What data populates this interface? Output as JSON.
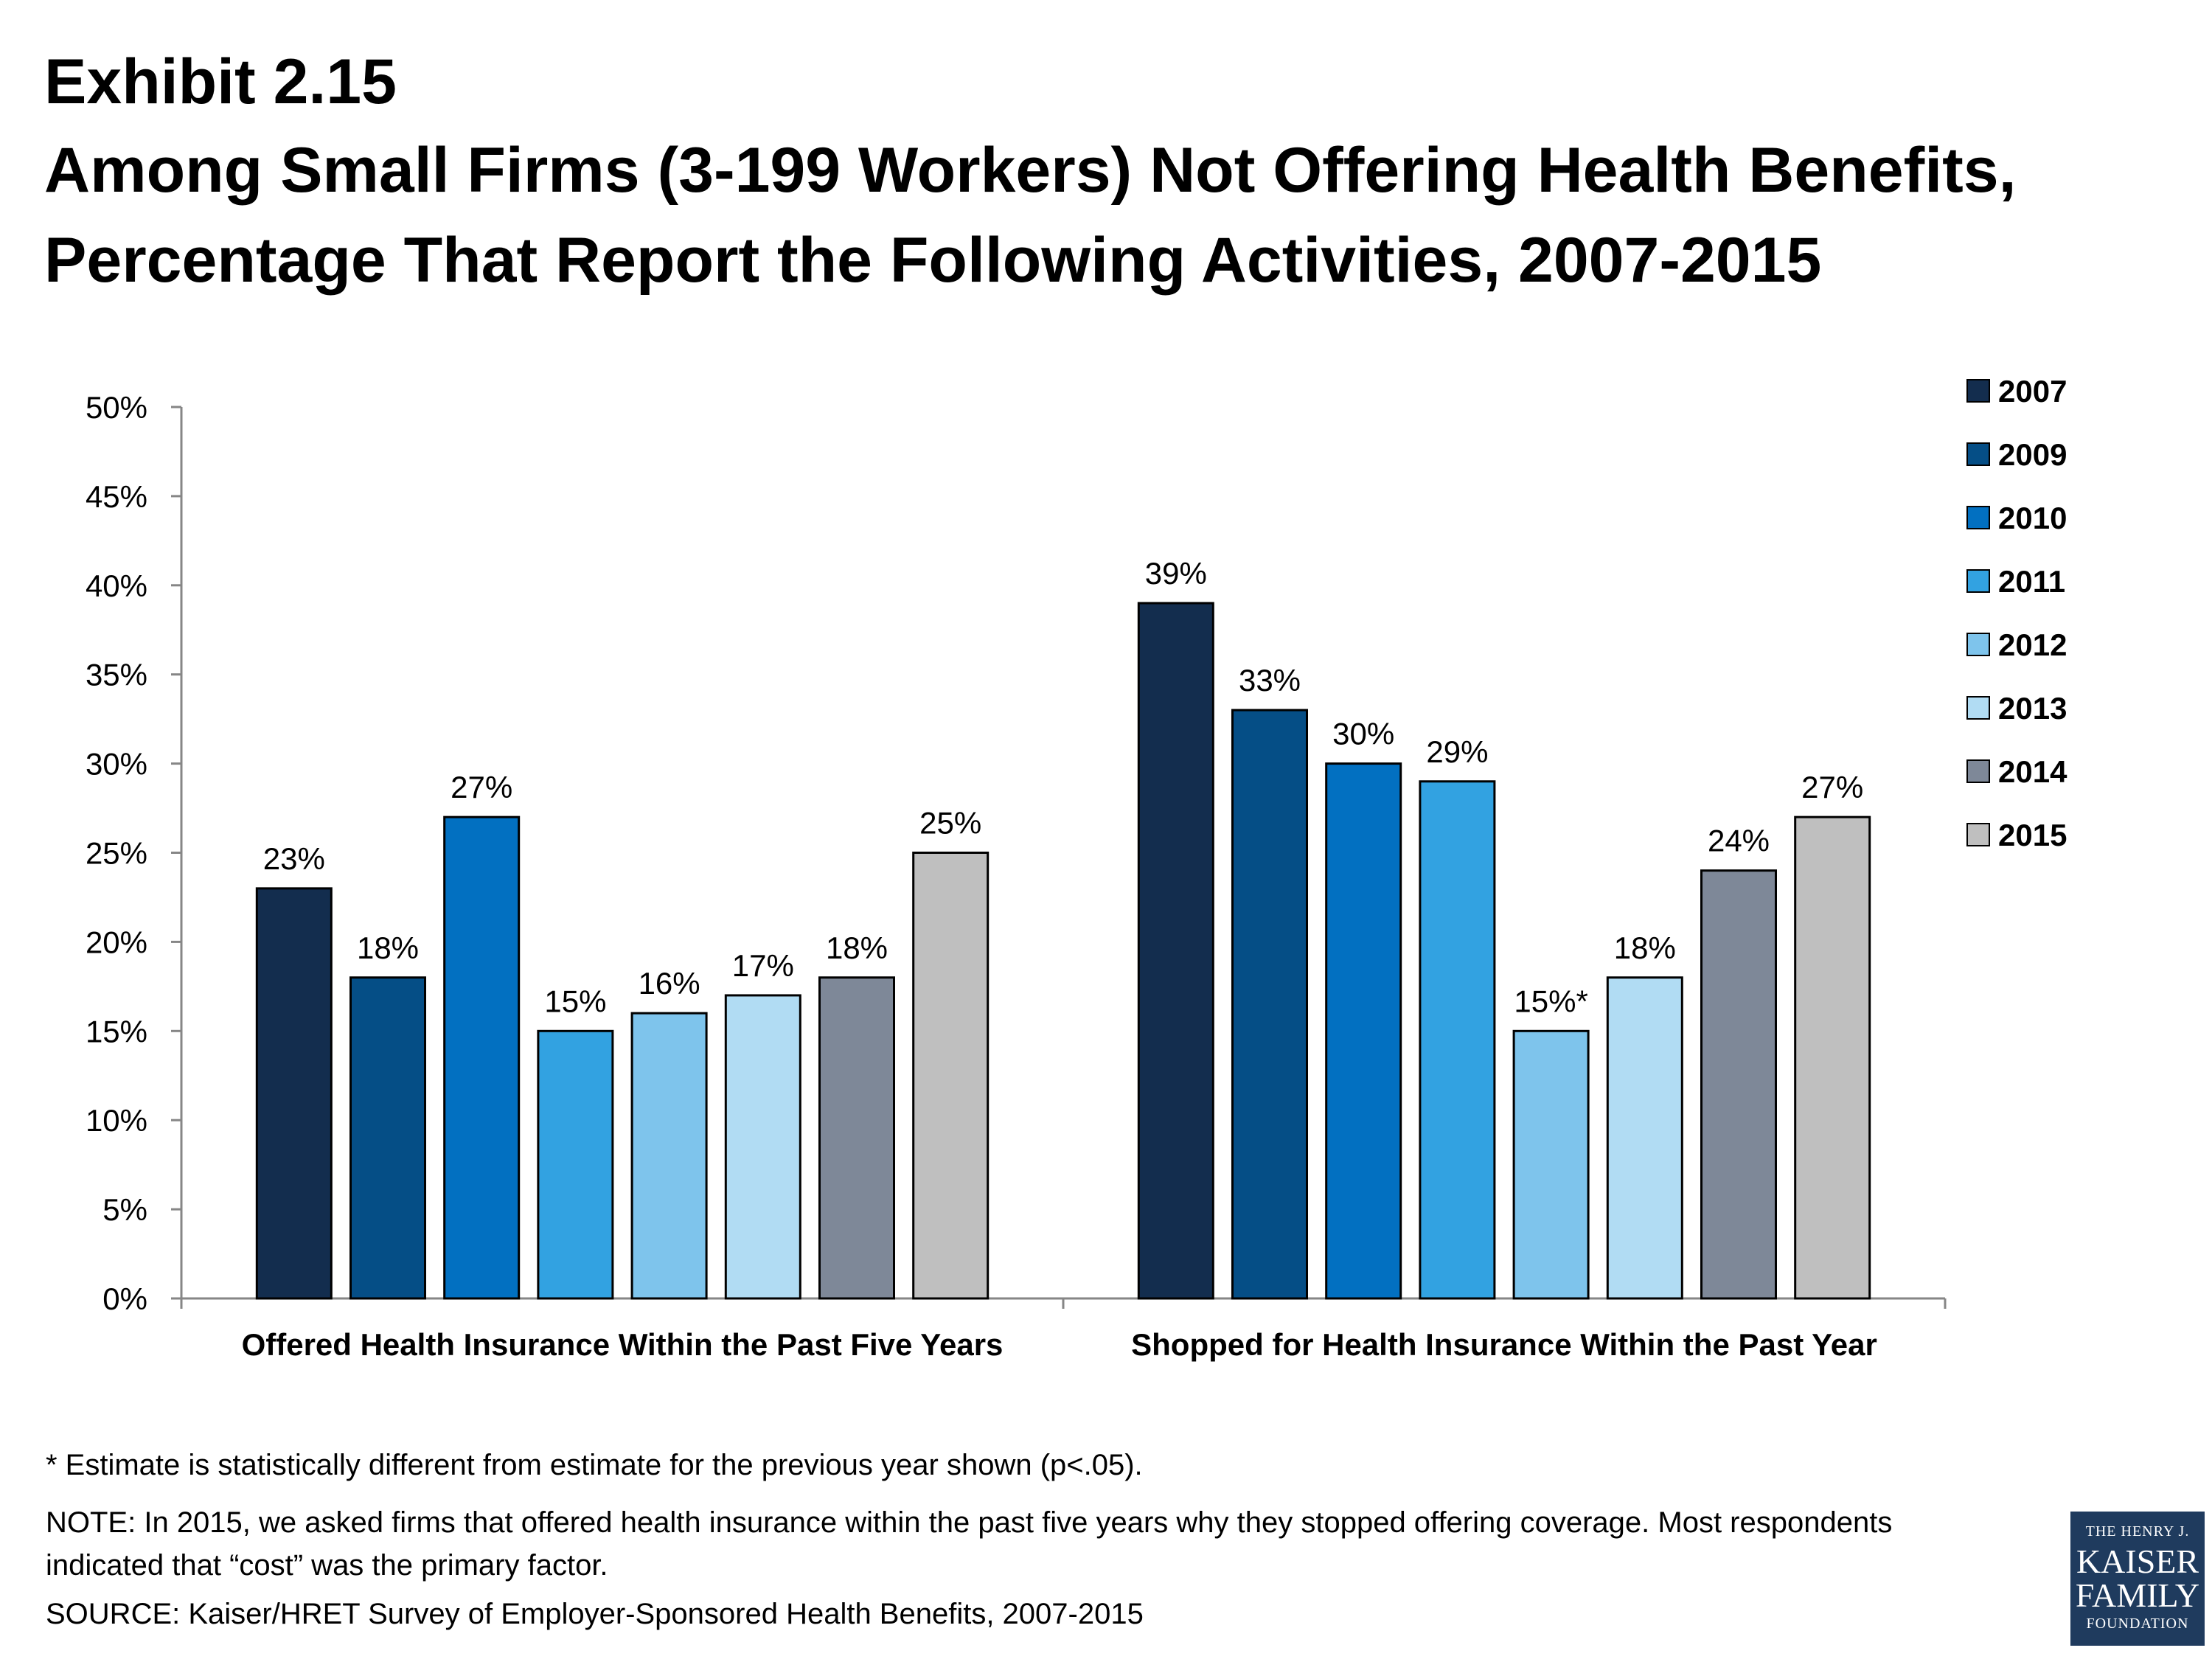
{
  "header": {
    "exhibit": "Exhibit 2.15",
    "title_line1": "Among Small Firms (3-199 Workers) Not Offering Health Benefits,",
    "title_line2": "Percentage That Report the Following Activities, 2007-2015"
  },
  "chart_data": {
    "type": "bar",
    "categories": [
      "Offered Health Insurance Within the Past Five Years",
      "Shopped for Health Insurance Within the Past Year"
    ],
    "series": [
      {
        "name": "2007",
        "color": "#132d4e",
        "values": [
          23,
          39
        ],
        "labels": [
          "23%",
          "39%"
        ]
      },
      {
        "name": "2009",
        "color": "#054e86",
        "values": [
          18,
          33
        ],
        "labels": [
          "18%",
          "33%"
        ]
      },
      {
        "name": "2010",
        "color": "#0270c1",
        "values": [
          27,
          30
        ],
        "labels": [
          "27%",
          "30%"
        ]
      },
      {
        "name": "2011",
        "color": "#32a2e1",
        "values": [
          15,
          29
        ],
        "labels": [
          "15%",
          "29%"
        ]
      },
      {
        "name": "2012",
        "color": "#7ec4ec",
        "values": [
          16,
          15
        ],
        "labels": [
          "16%",
          "15%*"
        ]
      },
      {
        "name": "2013",
        "color": "#b1dcf3",
        "values": [
          17,
          18
        ],
        "labels": [
          "17%",
          "18%"
        ]
      },
      {
        "name": "2014",
        "color": "#7e8898",
        "values": [
          18,
          24
        ],
        "labels": [
          "18%",
          "24%"
        ]
      },
      {
        "name": "2015",
        "color": "#bfbfbf",
        "values": [
          25,
          27
        ],
        "labels": [
          "25%",
          "27%"
        ]
      }
    ],
    "ylim": [
      0,
      50
    ],
    "yticks": [
      0,
      5,
      10,
      15,
      20,
      25,
      30,
      35,
      40,
      45,
      50
    ],
    "ytick_labels": [
      "0%",
      "5%",
      "10%",
      "15%",
      "20%",
      "25%",
      "30%",
      "35%",
      "40%",
      "45%",
      "50%"
    ],
    "xlabel": "",
    "ylabel": "",
    "grid": false,
    "legend_position": "right"
  },
  "footer": {
    "footnote": "* Estimate is statistically different from estimate for the previous year shown (p<.05).",
    "note_line1": "NOTE:  In 2015, we asked firms that offered health insurance within the past five years why they stopped offering coverage.  Most respondents",
    "note_line2": "indicated that “cost” was the primary factor.",
    "source": "SOURCE: Kaiser/HRET Survey of Employer-Sponsored Health Benefits, 2007-2015"
  },
  "logo": {
    "line1": "THE HENRY J.",
    "line2": "KAISER",
    "line3": "FAMILY",
    "line4": "FOUNDATION"
  }
}
